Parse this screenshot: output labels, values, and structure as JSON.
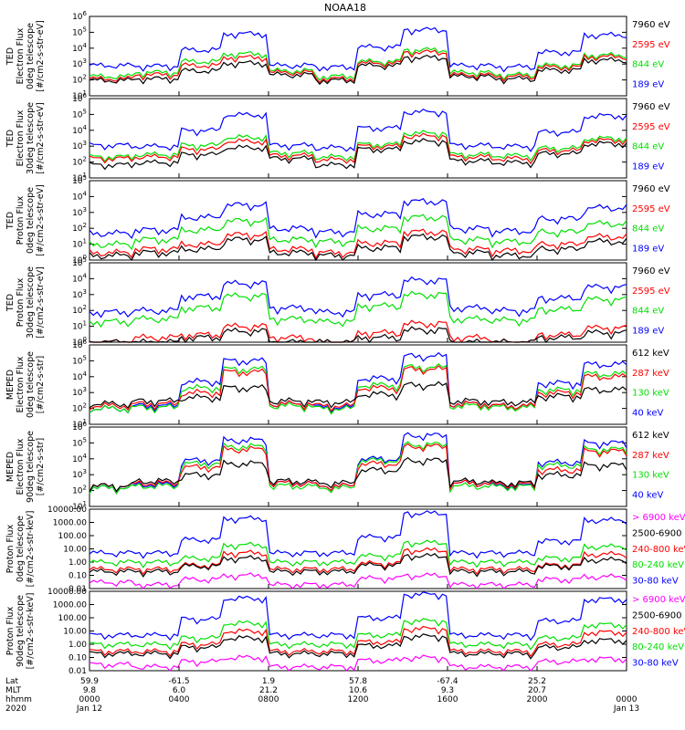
{
  "title": "NOAA18",
  "colors": {
    "blue": "#0000ff",
    "red": "#ff0000",
    "green": "#00e000",
    "black": "#000000",
    "magenta": "#ff00ff"
  },
  "chart_data": [
    {
      "type": "line",
      "ylog": true,
      "ylim": [
        1,
        1000000
      ],
      "ylabel_lines": [
        "TED",
        "Electron Flux",
        "0deg telescope",
        "[#/cm2-s-str-eV]"
      ],
      "yticks": [
        "10^1",
        "10^2",
        "10^3",
        "10^4",
        "10^5",
        "10^6"
      ],
      "series": [
        {
          "name": "7960 eV",
          "color": "#000000",
          "values": [
            15,
            20,
            80,
            300,
            40,
            15,
            200,
            800,
            30,
            20,
            90,
            500
          ]
        },
        {
          "name": "2595 eV",
          "color": "#ff0000",
          "values": [
            20,
            40,
            200,
            800,
            60,
            20,
            300,
            2000,
            40,
            30,
            150,
            900
          ]
        },
        {
          "name": "844 eV",
          "color": "#00e000",
          "values": [
            30,
            60,
            400,
            1500,
            80,
            30,
            400,
            3000,
            60,
            40,
            200,
            1200
          ]
        },
        {
          "name": "189 eV",
          "color": "#0000ff",
          "values": [
            200,
            180,
            3000,
            50000,
            200,
            150,
            5000,
            100000,
            200,
            160,
            2000,
            40000
          ]
        }
      ]
    },
    {
      "type": "line",
      "ylog": true,
      "ylim": [
        1,
        1000000
      ],
      "ylabel_lines": [
        "TED",
        "Electron Flux",
        "30deg telescope",
        "[#/cm2-s-str-eV]"
      ],
      "yticks": [
        "10^1",
        "10^2",
        "10^3",
        "10^4",
        "10^5",
        "10^6"
      ],
      "series": [
        {
          "name": "7960 eV",
          "color": "#000000",
          "values": [
            10,
            15,
            60,
            200,
            30,
            10,
            150,
            600,
            20,
            15,
            70,
            400
          ]
        },
        {
          "name": "2595 eV",
          "color": "#ff0000",
          "values": [
            30,
            40,
            150,
            600,
            50,
            25,
            250,
            1500,
            40,
            30,
            120,
            700
          ]
        },
        {
          "name": "844 eV",
          "color": "#00e000",
          "values": [
            40,
            60,
            300,
            1200,
            80,
            40,
            350,
            2500,
            60,
            50,
            180,
            1000
          ]
        },
        {
          "name": "189 eV",
          "color": "#0000ff",
          "values": [
            300,
            250,
            4000,
            60000,
            300,
            200,
            6000,
            100000,
            300,
            250,
            3000,
            50000
          ]
        }
      ]
    },
    {
      "type": "line",
      "ylog": true,
      "ylim": [
        1,
        100000
      ],
      "ylabel_lines": [
        "TED",
        "Proton Flux",
        "0deg telescope",
        "[#/cm2-s-str-eV]"
      ],
      "yticks": [
        "10^0",
        "10^1",
        "10^2",
        "10^3",
        "10^4",
        "10^5"
      ],
      "series": [
        {
          "name": "7960 eV",
          "color": "#000000",
          "values": [
            2,
            3,
            5,
            20,
            3,
            2,
            6,
            30,
            3,
            2,
            5,
            15
          ]
        },
        {
          "name": "2595 eV",
          "color": "#ff0000",
          "values": [
            3,
            5,
            10,
            40,
            5,
            3,
            12,
            60,
            5,
            4,
            10,
            30
          ]
        },
        {
          "name": "844 eV",
          "color": "#00e000",
          "values": [
            10,
            20,
            80,
            300,
            20,
            15,
            100,
            500,
            20,
            15,
            60,
            200
          ]
        },
        {
          "name": "189 eV",
          "color": "#0000ff",
          "values": [
            50,
            80,
            500,
            3000,
            100,
            60,
            800,
            5000,
            100,
            70,
            400,
            2000
          ]
        }
      ]
    },
    {
      "type": "line",
      "ylog": true,
      "ylim": [
        1,
        100000
      ],
      "ylabel_lines": [
        "TED",
        "Proton Flux",
        "30deg telescope",
        "[#/cm2-s-str-eV]"
      ],
      "yticks": [
        "10^0",
        "10^1",
        "10^2",
        "10^3",
        "10^4",
        "10^5"
      ],
      "series": [
        {
          "name": "7960 eV",
          "color": "#000000",
          "values": [
            1,
            1,
            2,
            5,
            1,
            1,
            2,
            6,
            1,
            1,
            2,
            4
          ]
        },
        {
          "name": "2595 eV",
          "color": "#ff0000",
          "values": [
            1,
            2,
            3,
            10,
            2,
            1,
            4,
            15,
            2,
            1,
            3,
            8
          ]
        },
        {
          "name": "844 eV",
          "color": "#00e000",
          "values": [
            20,
            30,
            150,
            800,
            30,
            20,
            200,
            1000,
            30,
            25,
            120,
            500
          ]
        },
        {
          "name": "189 eV",
          "color": "#0000ff",
          "values": [
            80,
            100,
            800,
            5000,
            150,
            80,
            1000,
            8000,
            150,
            100,
            600,
            3000
          ]
        }
      ]
    },
    {
      "type": "line",
      "ylog": true,
      "ylim": [
        10,
        1000000
      ],
      "ylabel_lines": [
        "MEPED",
        "Electron Flux",
        "0deg telescope",
        "[#/cm2-s-str]"
      ],
      "yticks": [
        "10^1",
        "10^2",
        "10^3",
        "10^4",
        "10^5",
        "10^6"
      ],
      "series": [
        {
          "name": "612 keV",
          "color": "#000000",
          "values": [
            200,
            300,
            500,
            2000,
            300,
            250,
            800,
            3000,
            300,
            250,
            600,
            1500
          ]
        },
        {
          "name": "287 keV",
          "color": "#ff0000",
          "values": [
            150,
            200,
            1000,
            20000,
            200,
            150,
            2000,
            30000,
            200,
            150,
            1000,
            10000
          ]
        },
        {
          "name": "130 keV",
          "color": "#00e000",
          "values": [
            100,
            120,
            2000,
            30000,
            150,
            100,
            3000,
            40000,
            150,
            120,
            1500,
            15000
          ]
        },
        {
          "name": "40 keV",
          "color": "#0000ff",
          "values": [
            100,
            150,
            5000,
            100000,
            200,
            120,
            8000,
            200000,
            200,
            150,
            4000,
            60000
          ]
        }
      ]
    },
    {
      "type": "line",
      "ylog": true,
      "ylim": [
        10,
        1000000
      ],
      "ylabel_lines": [
        "MEPED",
        "Electron Flux",
        "90deg telescope",
        "[#/cm2-s-str]"
      ],
      "yticks": [
        "10^1",
        "10^2",
        "10^3",
        "10^4",
        "10^5",
        "10^6"
      ],
      "series": [
        {
          "name": "612 keV",
          "color": "#000000",
          "values": [
            200,
            400,
            1000,
            5000,
            400,
            300,
            2000,
            8000,
            400,
            300,
            1000,
            4000
          ]
        },
        {
          "name": "287 keV",
          "color": "#ff0000",
          "values": [
            200,
            300,
            3000,
            40000,
            300,
            200,
            5000,
            60000,
            300,
            250,
            2000,
            30000
          ]
        },
        {
          "name": "130 keV",
          "color": "#00e000",
          "values": [
            150,
            200,
            5000,
            60000,
            200,
            150,
            8000,
            80000,
            200,
            180,
            4000,
            40000
          ]
        },
        {
          "name": "40 keV",
          "color": "#0000ff",
          "values": [
            150,
            250,
            8000,
            150000,
            300,
            200,
            10000,
            300000,
            300,
            200,
            6000,
            100000
          ]
        }
      ]
    },
    {
      "type": "line",
      "ylog": true,
      "ylim": [
        0.01,
        10000
      ],
      "ylabel_lines": [
        "Proton Flux",
        "0deg telescope",
        "[#/cm2-s-str-keV]"
      ],
      "yticks": [
        "0.01",
        "0.10",
        "1.00",
        "10.00",
        "100.00",
        "1000.00",
        "10000.00"
      ],
      "series": [
        {
          "name": "> 6900 keV",
          "color": "#ff00ff",
          "values": [
            0.03,
            0.02,
            0.05,
            0.1,
            0.02,
            0.02,
            0.06,
            0.1,
            0.02,
            0.02,
            0.05,
            0.08
          ]
        },
        {
          "name": "2500-6900",
          "color": "#000000",
          "values": [
            0.2,
            0.2,
            0.5,
            2,
            0.2,
            0.2,
            0.6,
            3,
            0.2,
            0.2,
            0.5,
            1.5
          ]
        },
        {
          "name": "240-800 keV",
          "color": "#ff0000",
          "values": [
            0.3,
            0.3,
            0.6,
            5,
            0.3,
            0.3,
            0.8,
            8,
            0.3,
            0.3,
            0.6,
            4
          ]
        },
        {
          "name": "80-240 keV",
          "color": "#00e000",
          "values": [
            1,
            1,
            2,
            20,
            1,
            1,
            3,
            30,
            1,
            1,
            2,
            15
          ]
        },
        {
          "name": "30-80 keV",
          "color": "#0000ff",
          "values": [
            5,
            5,
            50,
            2000,
            5,
            5,
            80,
            5000,
            5,
            5,
            40,
            1500
          ]
        }
      ]
    },
    {
      "type": "line",
      "ylog": true,
      "ylim": [
        0.01,
        10000
      ],
      "ylabel_lines": [
        "Proton Flux",
        "90deg telescope",
        "[#/cm2-s-str-keV]"
      ],
      "yticks": [
        "0.01",
        "0.10",
        "1.00",
        "10.00",
        "100.00",
        "1000.00",
        "10000.00"
      ],
      "series": [
        {
          "name": "> 6900 keV",
          "color": "#ff00ff",
          "values": [
            0.03,
            0.02,
            0.05,
            0.1,
            0.02,
            0.02,
            0.06,
            0.1,
            0.02,
            0.02,
            0.05,
            0.08
          ]
        },
        {
          "name": "2500-6900",
          "color": "#000000",
          "values": [
            0.2,
            0.2,
            0.6,
            3,
            0.2,
            0.2,
            0.8,
            4,
            0.2,
            0.2,
            0.6,
            2
          ]
        },
        {
          "name": "240-800 keV",
          "color": "#ff0000",
          "values": [
            0.3,
            0.3,
            1,
            10,
            0.3,
            0.3,
            1.5,
            15,
            0.3,
            0.3,
            1,
            8
          ]
        },
        {
          "name": "80-240 keV",
          "color": "#00e000",
          "values": [
            1,
            1,
            3,
            40,
            1,
            1,
            5,
            60,
            1,
            1,
            3,
            30
          ]
        },
        {
          "name": "30-80 keV",
          "color": "#0000ff",
          "values": [
            5,
            5,
            80,
            3000,
            5,
            5,
            100,
            6000,
            5,
            5,
            60,
            2500
          ]
        }
      ]
    }
  ],
  "x_axis": {
    "row_labels": [
      "Lat",
      "MLT",
      "hhmm",
      "2020"
    ],
    "ticks": [
      {
        "lat": "59.9",
        "mlt": "9.8",
        "hhmm": "0000",
        "date": "Jan 12"
      },
      {
        "lat": "-61.5",
        "mlt": "6.0",
        "hhmm": "0400",
        "date": ""
      },
      {
        "lat": "1.9",
        "mlt": "21.2",
        "hhmm": "0800",
        "date": ""
      },
      {
        "lat": "57.8",
        "mlt": "10.6",
        "hhmm": "1200",
        "date": ""
      },
      {
        "lat": "-67.4",
        "mlt": "9.3",
        "hhmm": "1600",
        "date": ""
      },
      {
        "lat": "25.2",
        "mlt": "20.7",
        "hhmm": "2000",
        "date": ""
      },
      {
        "lat": "",
        "mlt": "",
        "hhmm": "0000",
        "date": "Jan 13"
      }
    ]
  }
}
